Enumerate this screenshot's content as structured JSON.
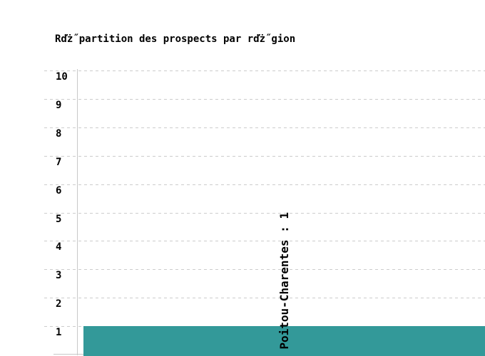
{
  "chart_data": {
    "type": "bar",
    "title": "Rďż˝partition des prospects par rďż˝gion",
    "categories": [
      "Poitou-Charentes"
    ],
    "values": [
      1
    ],
    "bar_labels": [
      "Poitou-Charentes : 1"
    ],
    "xlabel": "",
    "ylabel": "",
    "ylim": [
      0,
      10
    ],
    "yticks": [
      10,
      9,
      8,
      7,
      6,
      5,
      4,
      3,
      2,
      1
    ],
    "grid": "horizontal-dashed",
    "legend": "none",
    "x_tick_labels_visible": false,
    "colors": {
      "bar": "#339999",
      "grid": "#cccccc",
      "axis": "#c8c8c8",
      "text": "#000000",
      "background": "#ffffff"
    }
  }
}
